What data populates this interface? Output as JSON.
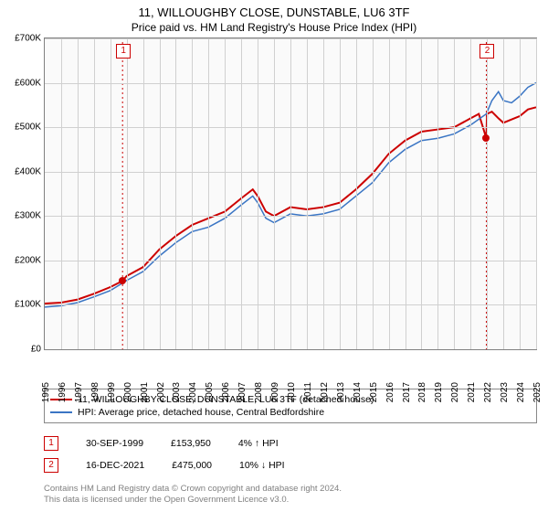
{
  "title_main": "11, WILLOUGHBY CLOSE, DUNSTABLE, LU6 3TF",
  "title_sub": "Price paid vs. HM Land Registry's House Price Index (HPI)",
  "chart": {
    "type": "line",
    "background_color": "#fafafa",
    "border_color": "#808080",
    "grid_color": "#d0d0d0",
    "ylim": [
      0,
      700000
    ],
    "ytick_step": 100000,
    "yticks": [
      "£0",
      "£100K",
      "£200K",
      "£300K",
      "£400K",
      "£500K",
      "£600K",
      "£700K"
    ],
    "xlim": [
      1995,
      2025
    ],
    "xticks": [
      "1995",
      "1996",
      "1997",
      "1998",
      "1999",
      "2000",
      "2001",
      "2002",
      "2003",
      "2004",
      "2005",
      "2006",
      "2007",
      "2008",
      "2009",
      "2010",
      "2011",
      "2012",
      "2013",
      "2014",
      "2015",
      "2016",
      "2017",
      "2018",
      "2019",
      "2020",
      "2021",
      "2022",
      "2023",
      "2024",
      "2025"
    ],
    "series": [
      {
        "name": "property",
        "label": "11, WILLOUGHBY CLOSE, DUNSTABLE, LU6 3TF (detached house)",
        "color": "#cc0000",
        "line_width": 2,
        "data": [
          [
            1995,
            103000
          ],
          [
            1996,
            105000
          ],
          [
            1997,
            112000
          ],
          [
            1998,
            125000
          ],
          [
            1999,
            140000
          ],
          [
            1999.75,
            153950
          ],
          [
            2000,
            165000
          ],
          [
            2001,
            185000
          ],
          [
            2002,
            225000
          ],
          [
            2003,
            255000
          ],
          [
            2004,
            280000
          ],
          [
            2005,
            295000
          ],
          [
            2006,
            310000
          ],
          [
            2007,
            340000
          ],
          [
            2007.7,
            360000
          ],
          [
            2008,
            345000
          ],
          [
            2008.5,
            310000
          ],
          [
            2009,
            300000
          ],
          [
            2010,
            320000
          ],
          [
            2011,
            315000
          ],
          [
            2012,
            320000
          ],
          [
            2013,
            330000
          ],
          [
            2014,
            360000
          ],
          [
            2015,
            395000
          ],
          [
            2016,
            440000
          ],
          [
            2017,
            470000
          ],
          [
            2018,
            490000
          ],
          [
            2019,
            495000
          ],
          [
            2020,
            500000
          ],
          [
            2021,
            520000
          ],
          [
            2021.5,
            530000
          ],
          [
            2021.96,
            475000
          ],
          [
            2022,
            530000
          ],
          [
            2022.3,
            535000
          ],
          [
            2022.7,
            520000
          ],
          [
            2023,
            510000
          ],
          [
            2024,
            525000
          ],
          [
            2024.5,
            540000
          ],
          [
            2025,
            545000
          ]
        ]
      },
      {
        "name": "hpi",
        "label": "HPI: Average price, detached house, Central Bedfordshire",
        "color": "#3a75c4",
        "line_width": 1.5,
        "data": [
          [
            1995,
            95000
          ],
          [
            1996,
            98000
          ],
          [
            1997,
            105000
          ],
          [
            1998,
            118000
          ],
          [
            1999,
            132000
          ],
          [
            2000,
            155000
          ],
          [
            2001,
            175000
          ],
          [
            2002,
            210000
          ],
          [
            2003,
            240000
          ],
          [
            2004,
            265000
          ],
          [
            2005,
            275000
          ],
          [
            2006,
            295000
          ],
          [
            2007,
            325000
          ],
          [
            2007.7,
            345000
          ],
          [
            2008,
            330000
          ],
          [
            2008.5,
            295000
          ],
          [
            2009,
            285000
          ],
          [
            2010,
            305000
          ],
          [
            2011,
            300000
          ],
          [
            2012,
            305000
          ],
          [
            2013,
            315000
          ],
          [
            2014,
            345000
          ],
          [
            2015,
            375000
          ],
          [
            2016,
            420000
          ],
          [
            2017,
            450000
          ],
          [
            2018,
            470000
          ],
          [
            2019,
            475000
          ],
          [
            2020,
            485000
          ],
          [
            2021,
            505000
          ],
          [
            2021.96,
            530000
          ],
          [
            2022.3,
            560000
          ],
          [
            2022.7,
            580000
          ],
          [
            2023,
            560000
          ],
          [
            2023.5,
            555000
          ],
          [
            2024,
            570000
          ],
          [
            2024.5,
            590000
          ],
          [
            2025,
            600000
          ]
        ]
      }
    ],
    "sale_markers": [
      {
        "num": "1",
        "year": 1999.75,
        "price": 153950,
        "color": "#cc0000"
      },
      {
        "num": "2",
        "year": 2021.96,
        "price": 475000,
        "color": "#cc0000"
      }
    ]
  },
  "legend": {
    "border_color": "#888888"
  },
  "sales_table": [
    {
      "num": "1",
      "date": "30-SEP-1999",
      "price": "£153,950",
      "diff": "4% ↑ HPI",
      "color": "#cc0000"
    },
    {
      "num": "2",
      "date": "16-DEC-2021",
      "price": "£475,000",
      "diff": "10% ↓ HPI",
      "color": "#cc0000"
    }
  ],
  "footnote_line1": "Contains HM Land Registry data © Crown copyright and database right 2024.",
  "footnote_line2": "This data is licensed under the Open Government Licence v3.0."
}
